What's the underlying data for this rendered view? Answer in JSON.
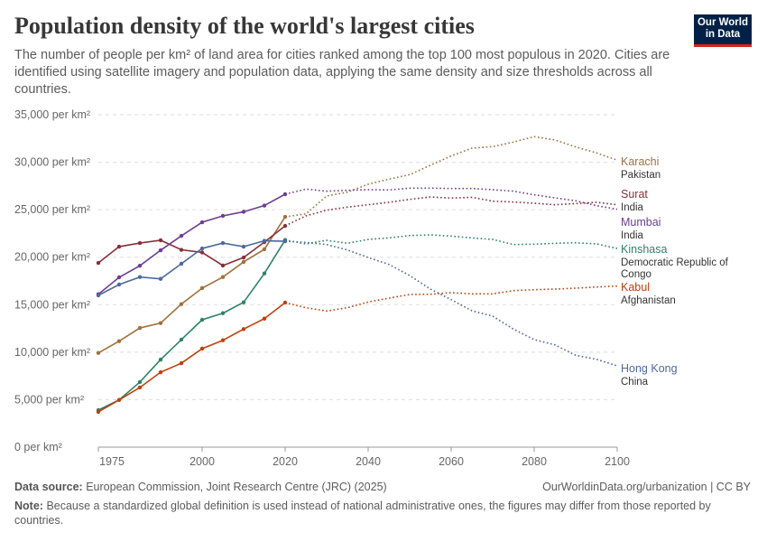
{
  "header": {
    "title": "Population density of the world's largest cities",
    "subtitle": "The number of people per km² of land area for cities ranked among the top 100 most populous in 2020. Cities are identified using satellite imagery and population data, applying the same density and size thresholds across all countries.",
    "logo": "Our World in Data"
  },
  "footer": {
    "source_label": "Data source:",
    "source": "European Commission, Joint Research Centre (JRC) (2025)",
    "url": "OurWorldinData.org/urbanization | CC BY",
    "note_label": "Note:",
    "note": "Because a standardized global definition is used instead of national administrative ones, the figures may differ from those reported by countries."
  },
  "chart_data": {
    "type": "line",
    "title": "Population density of the world's largest cities",
    "xlim": [
      1975,
      2100
    ],
    "ylim": [
      0,
      35000
    ],
    "x_ticks": [
      1975,
      2000,
      2020,
      2040,
      2060,
      2080,
      2100
    ],
    "y_ticks": [
      {
        "value": 0,
        "label": "0 per km²"
      },
      {
        "value": 5000,
        "label": "5,000 per km²"
      },
      {
        "value": 10000,
        "label": "10,000 per km²"
      },
      {
        "value": 15000,
        "label": "15,000 per km²"
      },
      {
        "value": 20000,
        "label": "20,000 per km²"
      },
      {
        "value": 25000,
        "label": "25,000 per km²"
      },
      {
        "value": 30000,
        "label": "30,000 per km²"
      },
      {
        "value": 35000,
        "label": "35,000 per km²"
      }
    ],
    "grid": "horizontal dashed",
    "legend": "right (inline labels)",
    "historical_years": [
      1975,
      1980,
      1985,
      1990,
      1995,
      2000,
      2005,
      2010,
      2015,
      2020
    ],
    "projection_years": [
      2020,
      2025,
      2030,
      2035,
      2040,
      2045,
      2050,
      2055,
      2060,
      2065,
      2070,
      2075,
      2080,
      2085,
      2090,
      2095,
      2100
    ],
    "series": [
      {
        "name": "Karachi",
        "country": "Pakistan",
        "color": "#a2703c",
        "historical": [
          9920,
          11160,
          12550,
          13060,
          15060,
          16740,
          17910,
          19500,
          20830,
          24250
        ],
        "projection": [
          24250,
          24560,
          26440,
          26850,
          27680,
          28220,
          28690,
          29680,
          30660,
          31480,
          31640,
          32120,
          32690,
          32340,
          31610,
          30980,
          30220
        ]
      },
      {
        "name": "Surat",
        "country": "India",
        "color": "#883039",
        "historical": [
          19400,
          21110,
          21490,
          21780,
          20780,
          20500,
          19120,
          19970,
          21590,
          23300
        ],
        "projection": [
          23300,
          24350,
          24950,
          25270,
          25520,
          25780,
          26090,
          26340,
          26220,
          26310,
          25900,
          25810,
          25680,
          25520,
          25650,
          25780,
          25520
        ]
      },
      {
        "name": "Mumbai",
        "country": "India",
        "color": "#6d3e91",
        "historical": [
          16100,
          17880,
          19100,
          20730,
          22250,
          23680,
          24350,
          24780,
          25440,
          26630
        ],
        "projection": [
          26630,
          27170,
          26950,
          27040,
          27110,
          27080,
          27270,
          27270,
          27230,
          27230,
          27110,
          26950,
          26570,
          26250,
          25940,
          25430,
          25050
        ]
      },
      {
        "name": "Kinshasa",
        "country": "Democratic Republic of Congo",
        "color": "#2c8465",
        "historical": [
          3900,
          4970,
          6850,
          9220,
          11320,
          13410,
          14100,
          15250,
          18290,
          21810
        ],
        "projection": [
          21810,
          21400,
          21780,
          21460,
          21870,
          22030,
          22280,
          22350,
          22220,
          22030,
          21870,
          21330,
          21370,
          21460,
          21520,
          21400,
          20920
        ]
      },
      {
        "name": "Kabul",
        "country": "Afghanistan",
        "color": "#c0400d",
        "historical": [
          3710,
          4970,
          6280,
          7890,
          8840,
          10370,
          11250,
          12430,
          13530,
          15220
        ],
        "projection": [
          15220,
          14680,
          14330,
          14680,
          15280,
          15690,
          16070,
          16100,
          16260,
          16140,
          16140,
          16480,
          16580,
          16640,
          16740,
          16860,
          16960
        ]
      },
      {
        "name": "Hong Kong",
        "country": "China",
        "color": "#4c6a9c",
        "historical": [
          15980,
          17120,
          17910,
          17720,
          19310,
          20920,
          21490,
          21110,
          21730,
          21680
        ],
        "projection": [
          21680,
          21560,
          21330,
          20760,
          19970,
          19240,
          18070,
          16640,
          15530,
          14360,
          13790,
          12430,
          11320,
          10770,
          9670,
          9250,
          8560
        ]
      }
    ]
  }
}
